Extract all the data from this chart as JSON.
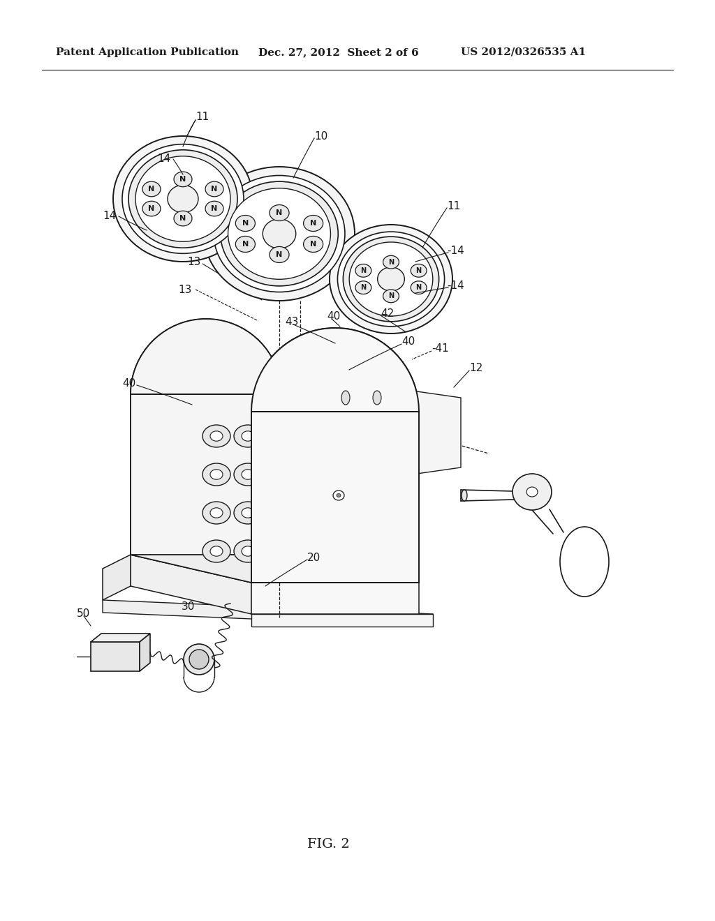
{
  "background_color": "#ffffff",
  "header_text": "Patent Application Publication",
  "header_date": "Dec. 27, 2012  Sheet 2 of 6",
  "header_patent": "US 2012/0326535 A1",
  "figure_label": "FIG. 2",
  "line_color": "#1a1a1a",
  "fig_width": 10.24,
  "fig_height": 13.2,
  "dpi": 100
}
